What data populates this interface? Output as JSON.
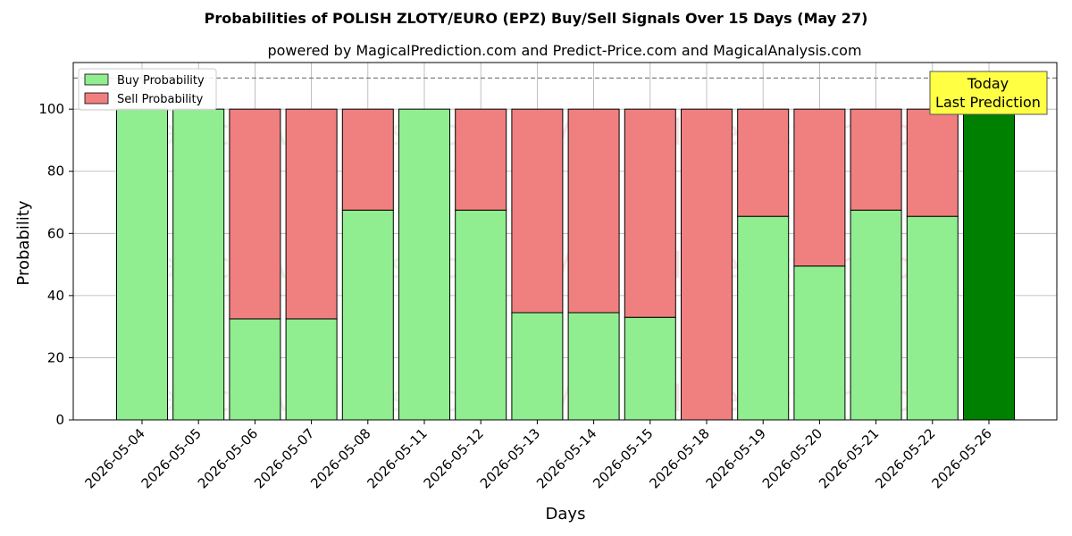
{
  "chart_data": {
    "type": "bar",
    "stacked": true,
    "title": "Probabilities of POLISH ZLOTY/EURO (EPZ) Buy/Sell Signals Over 15 Days (May 27)",
    "subtitle": "powered by MagicalPrediction.com and Predict-Price.com and MagicalAnalysis.com",
    "xlabel": "Days",
    "ylabel": "Probability",
    "ylim": [
      0,
      115
    ],
    "yticks": [
      0,
      20,
      40,
      60,
      80,
      100
    ],
    "reference_line": 110,
    "categories": [
      "2026-05-04",
      "2026-05-05",
      "2026-05-06",
      "2026-05-07",
      "2026-05-08",
      "2026-05-11",
      "2026-05-12",
      "2026-05-13",
      "2026-05-14",
      "2026-05-15",
      "2026-05-18",
      "2026-05-19",
      "2026-05-20",
      "2026-05-21",
      "2026-05-22",
      "2026-05-26"
    ],
    "series": [
      {
        "name": "Buy Probability",
        "color": "#90ee90",
        "values": [
          100,
          100,
          32.5,
          32.5,
          67.5,
          100,
          67.5,
          34.5,
          34.5,
          33,
          0,
          65.5,
          49.5,
          67.5,
          65.5,
          100
        ]
      },
      {
        "name": "Sell Probability",
        "color": "#f08080",
        "values": [
          0,
          0,
          67.5,
          67.5,
          32.5,
          0,
          32.5,
          65.5,
          65.5,
          67,
          100,
          34.5,
          50.5,
          32.5,
          34.5,
          0
        ]
      }
    ],
    "highlight": {
      "index": 15,
      "color": "#008000"
    },
    "annotation": {
      "line1": "Today",
      "line2": "Last Prediction",
      "color": "#ffff44"
    },
    "watermarks": [
      "MagicalAnalysis.com",
      "MagicalPrediction.com"
    ],
    "legend_position": "top-left",
    "grid": true
  }
}
